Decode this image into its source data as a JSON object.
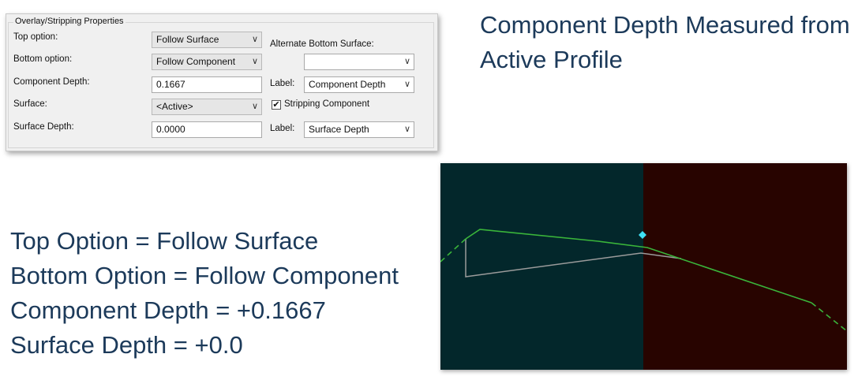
{
  "dialog": {
    "group_title": "Overlay/Stripping Properties",
    "top_option_label": "Top option:",
    "top_option_value": "Follow Surface",
    "bottom_option_label": "Bottom option:",
    "bottom_option_value": "Follow Component",
    "component_depth_label": "Component Depth:",
    "component_depth_value": "0.1667",
    "surface_label": "Surface:",
    "surface_value": "<Active>",
    "surface_depth_label": "Surface Depth:",
    "surface_depth_value": "0.0000",
    "alt_bottom_label": "Alternate Bottom Surface:",
    "alt_bottom_value": "",
    "label1_caption": "Label:",
    "label1_value": "Component Depth",
    "stripping_label": "Stripping Component",
    "stripping_checked": true,
    "label2_caption": "Label:",
    "label2_value": "Surface Depth"
  },
  "slide": {
    "heading": "Component Depth Measured from Active Profile",
    "bullets": [
      "Top Option = Follow Surface",
      "Bottom Option = Follow Component",
      "Component Depth = +0.1667",
      "Surface Depth = +0.0"
    ]
  },
  "graphic": {
    "left_background": "#03272b",
    "right_background": "#280400",
    "profile_color": "#3ab53a",
    "component_outline_color": "#9b9b9b",
    "marker_color": "#3fe0f5"
  }
}
